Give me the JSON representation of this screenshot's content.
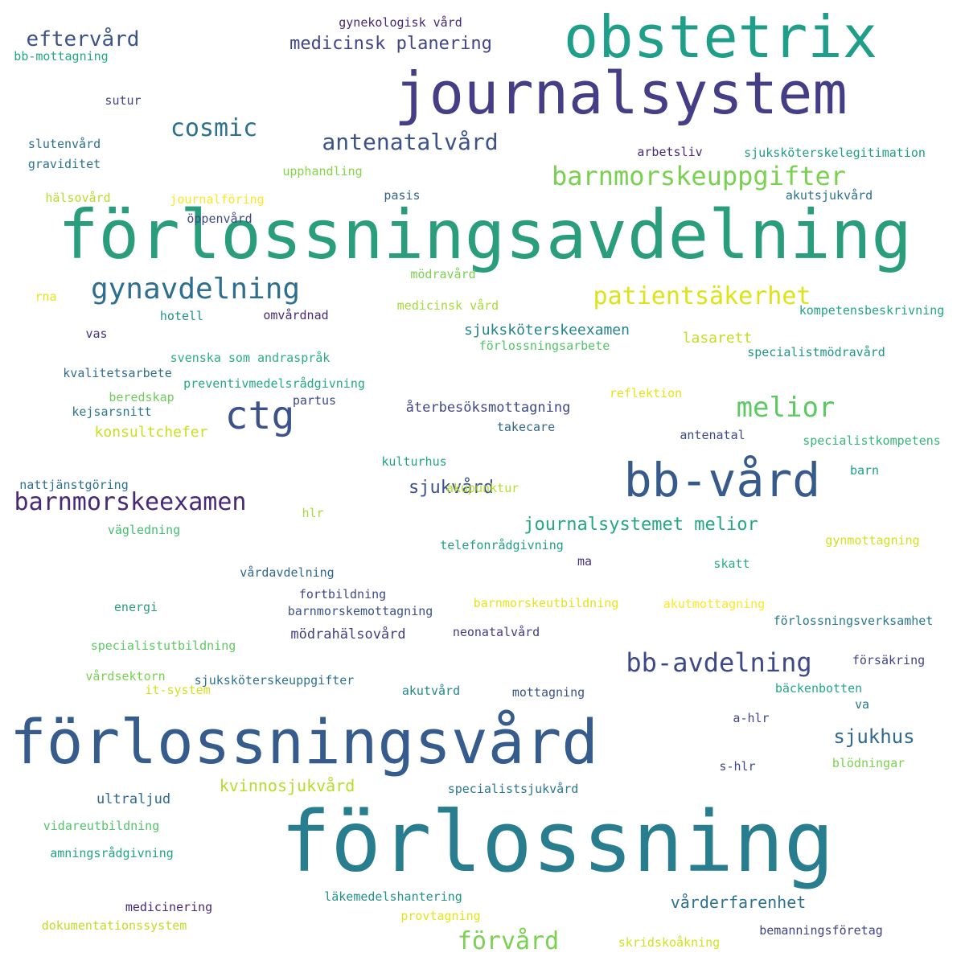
{
  "words": [
    {
      "text": "förlossningsavdelning",
      "color": "#2a9d7c"
    },
    {
      "text": "förlossning",
      "color": "#287d8e"
    },
    {
      "text": "förlossningsvård",
      "color": "#365c8d"
    },
    {
      "text": "journalsystem",
      "color": "#433e85"
    },
    {
      "text": "obstetrix",
      "color": "#1f9e89"
    },
    {
      "text": "bb-vård",
      "color": "#375a8c"
    },
    {
      "text": "ctg",
      "color": "#3b528b"
    },
    {
      "text": "melior",
      "color": "#5ec962"
    },
    {
      "text": "barnmorskeuppgifter",
      "color": "#7ad151"
    },
    {
      "text": "gynavdelning",
      "color": "#2e6e8e"
    },
    {
      "text": "barnmorskeexamen",
      "color": "#482878"
    },
    {
      "text": "bb-avdelning",
      "color": "#3e4989"
    },
    {
      "text": "patientsäkerhet",
      "color": "#dde318"
    },
    {
      "text": "cosmic",
      "color": "#2c728e"
    },
    {
      "text": "eftervård",
      "color": "#3b528b"
    },
    {
      "text": "antenatalvård",
      "color": "#3b528b"
    },
    {
      "text": "förvård",
      "color": "#7ad151"
    },
    {
      "text": "journalsystemet melior",
      "color": "#22a884"
    },
    {
      "text": "sjukvård",
      "color": "#3b528b"
    },
    {
      "text": "sjukhus",
      "color": "#31688e"
    },
    {
      "text": "medicinsk planering",
      "color": "#414487"
    },
    {
      "text": "kvinnosjukvård",
      "color": "#b5de2b"
    },
    {
      "text": "vårderfarenhet",
      "color": "#2c728e"
    },
    {
      "text": "lasarett",
      "color": "#c2df23"
    },
    {
      "text": "sjuksköterskeexamen",
      "color": "#25858e"
    },
    {
      "text": "konsultchefer",
      "color": "#c8e020"
    },
    {
      "text": "ultraljud",
      "color": "#31688e"
    },
    {
      "text": "återbesöksmottagning",
      "color": "#3e4989"
    },
    {
      "text": "mödrahälsovård",
      "color": "#433e85"
    },
    {
      "text": "gynekologisk vård",
      "color": "#482878"
    },
    {
      "text": "bb-mottagning",
      "color": "#22a884"
    },
    {
      "text": "sutur",
      "color": "#3e4989"
    },
    {
      "text": "slutenvård",
      "color": "#2d708e"
    },
    {
      "text": "graviditet",
      "color": "#2c728e"
    },
    {
      "text": "upphandling",
      "color": "#86d549"
    },
    {
      "text": "arbetsliv",
      "color": "#482878"
    },
    {
      "text": "sjuksköterskelegitimation",
      "color": "#1f9e89"
    },
    {
      "text": "hälsovård",
      "color": "#b5de2b"
    },
    {
      "text": "journalföring",
      "color": "#fde725"
    },
    {
      "text": "pasis",
      "color": "#33638d"
    },
    {
      "text": "akutsjukvård",
      "color": "#2c728e"
    },
    {
      "text": "öppenvård",
      "color": "#3e4989"
    },
    {
      "text": "mödravård",
      "color": "#7ad151"
    },
    {
      "text": "rna",
      "color": "#e5e419"
    },
    {
      "text": "hotell",
      "color": "#21918c"
    },
    {
      "text": "omvårdnad",
      "color": "#482878"
    },
    {
      "text": "medicinsk vård",
      "color": "#a5db36"
    },
    {
      "text": "kompetensbeskrivning",
      "color": "#21a685"
    },
    {
      "text": "vas",
      "color": "#46327e"
    },
    {
      "text": "förlossningsarbete",
      "color": "#54c568"
    },
    {
      "text": "specialistmödravård",
      "color": "#1f968b"
    },
    {
      "text": "svenska som andraspråk",
      "color": "#29af7f"
    },
    {
      "text": "kvalitetsarbete",
      "color": "#2e6e8e"
    },
    {
      "text": "preventivmedelsrådgivning",
      "color": "#22a884"
    },
    {
      "text": "partus",
      "color": "#3e4989"
    },
    {
      "text": "reflektion",
      "color": "#e5e419"
    },
    {
      "text": "beredskap",
      "color": "#6ccd5a"
    },
    {
      "text": "kejsarsnitt",
      "color": "#2a788e"
    },
    {
      "text": "takecare",
      "color": "#31688e"
    },
    {
      "text": "antenatal",
      "color": "#3e4989"
    },
    {
      "text": "specialistkompetens",
      "color": "#35b779"
    },
    {
      "text": "kulturhus",
      "color": "#20a386"
    },
    {
      "text": "nattjänstgöring",
      "color": "#2c728e"
    },
    {
      "text": "barn",
      "color": "#1f9e89"
    },
    {
      "text": "hlr",
      "color": "#a5db36"
    },
    {
      "text": "vägledning",
      "color": "#44bf70"
    },
    {
      "text": "gynmottagning",
      "color": "#d2e21b"
    },
    {
      "text": "telefonrådgivning",
      "color": "#1f9e89"
    },
    {
      "text": "ma",
      "color": "#46327e"
    },
    {
      "text": "skatt",
      "color": "#27ad81"
    },
    {
      "text": "vårdavdelning",
      "color": "#31688e"
    },
    {
      "text": "fortbildning",
      "color": "#3e4989"
    },
    {
      "text": "barnmorskeutbildning",
      "color": "#e5e419"
    },
    {
      "text": "akutmottagning",
      "color": "#fde725"
    },
    {
      "text": "förlossningsverksamhet",
      "color": "#2a788e"
    },
    {
      "text": "energi",
      "color": "#2a9d7c"
    },
    {
      "text": "barnmorskemottagning",
      "color": "#3b528b"
    },
    {
      "text": "neonatalvård",
      "color": "#433e85"
    },
    {
      "text": "specialistutbildning",
      "color": "#5ec962"
    },
    {
      "text": "försäkring",
      "color": "#414487"
    },
    {
      "text": "vårdsektorn",
      "color": "#7ad151"
    },
    {
      "text": "sjuksköterskeuppgifter",
      "color": "#2c728e"
    },
    {
      "text": "akutvård",
      "color": "#25858e"
    },
    {
      "text": "mottagning",
      "color": "#3b528b"
    },
    {
      "text": "bäckenbotten",
      "color": "#22a884"
    },
    {
      "text": "it-system",
      "color": "#d2e21b"
    },
    {
      "text": "va",
      "color": "#2a788e"
    },
    {
      "text": "a-hlr",
      "color": "#3e4989"
    },
    {
      "text": "s-hlr",
      "color": "#3e4989"
    },
    {
      "text": "blödningar",
      "color": "#7ad151"
    },
    {
      "text": "specialistsjukvård",
      "color": "#2a788e"
    },
    {
      "text": "vidareutbildning",
      "color": "#54c568"
    },
    {
      "text": "amningsrådgivning",
      "color": "#20a386"
    },
    {
      "text": "läkemedelshantering",
      "color": "#21918c"
    },
    {
      "text": "medicinering",
      "color": "#482878"
    },
    {
      "text": "provtagning",
      "color": "#e5e419"
    },
    {
      "text": "dokumentationssystem",
      "color": "#bddf26"
    },
    {
      "text": "skridskoåkning",
      "color": "#d2e21b"
    },
    {
      "text": "bemanningsföretag",
      "color": "#414487"
    },
    {
      "text": "akupunktur",
      "color": "#b5de2b"
    }
  ]
}
